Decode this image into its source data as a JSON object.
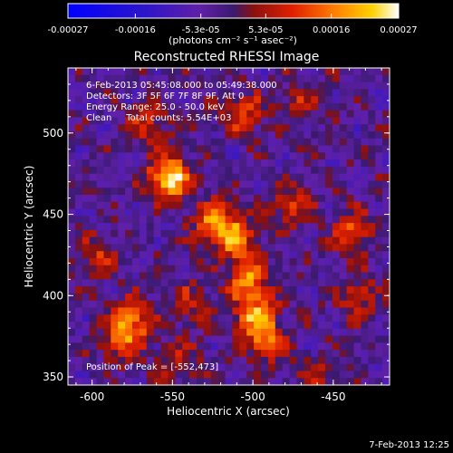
{
  "chart_data": {
    "type": "heatmap",
    "title": "Reconstructed RHESSI Image",
    "xlabel": "Heliocentric X (arcsec)",
    "ylabel": "Heliocentric Y (arcsec)",
    "xlim": [
      -615,
      -415
    ],
    "ylim": [
      345,
      540
    ],
    "x_ticks": [
      -600,
      -550,
      -500,
      -450
    ],
    "y_ticks": [
      350,
      400,
      450,
      500
    ],
    "x_tick_labels": [
      "-600",
      "-550",
      "-500",
      "-450"
    ],
    "y_tick_labels": [
      "350",
      "400",
      "450",
      "500"
    ],
    "colorbar": {
      "tick_values": [
        -0.00027,
        -0.00016,
        -5.3e-05,
        5.3e-05,
        0.00016,
        0.00027
      ],
      "tick_labels": [
        "-0.00027",
        "-0.00016",
        "-5.3e-05",
        "5.3e-05",
        "0.00016",
        "0.00027"
      ],
      "unit_label": "(photons cm⁻² s⁻¹ asec⁻²)",
      "range": [
        -0.00027,
        0.00027
      ]
    },
    "annotations": [
      "6-Feb-2013 05:45:08.000 to 05:49:38.000",
      "Detectors: 3F 5F 6F 7F 8F 9F, Att 0",
      "Energy Range: 25.0 - 50.0 keV",
      "Clean     Total counts: 5.54E+03"
    ],
    "peak_label": "Position of Peak = [-552,473]",
    "peak_position": [
      -552,
      473
    ],
    "sources": [
      {
        "x": -552,
        "y": 473,
        "amp": 1.0
      },
      {
        "x": -524,
        "y": 445,
        "amp": 0.72
      },
      {
        "x": -510,
        "y": 435,
        "amp": 0.62
      },
      {
        "x": -503,
        "y": 410,
        "amp": 0.68
      },
      {
        "x": -498,
        "y": 388,
        "amp": 0.72
      },
      {
        "x": -492,
        "y": 372,
        "amp": 0.55
      },
      {
        "x": -575,
        "y": 385,
        "amp": 0.62
      },
      {
        "x": -582,
        "y": 372,
        "amp": 0.45
      },
      {
        "x": -506,
        "y": 512,
        "amp": 0.48
      },
      {
        "x": -476,
        "y": 455,
        "amp": 0.42
      },
      {
        "x": -438,
        "y": 440,
        "amp": 0.5
      },
      {
        "x": -435,
        "y": 400,
        "amp": 0.42
      },
      {
        "x": -565,
        "y": 505,
        "amp": 0.4
      },
      {
        "x": -595,
        "y": 425,
        "amp": 0.38
      },
      {
        "x": -540,
        "y": 395,
        "amp": 0.35
      },
      {
        "x": -460,
        "y": 350,
        "amp": 0.3
      },
      {
        "x": -545,
        "y": 360,
        "amp": 0.32
      },
      {
        "x": -470,
        "y": 520,
        "amp": 0.3
      }
    ]
  },
  "footer": {
    "timestamp": "7-Feb-2013 12:25"
  }
}
